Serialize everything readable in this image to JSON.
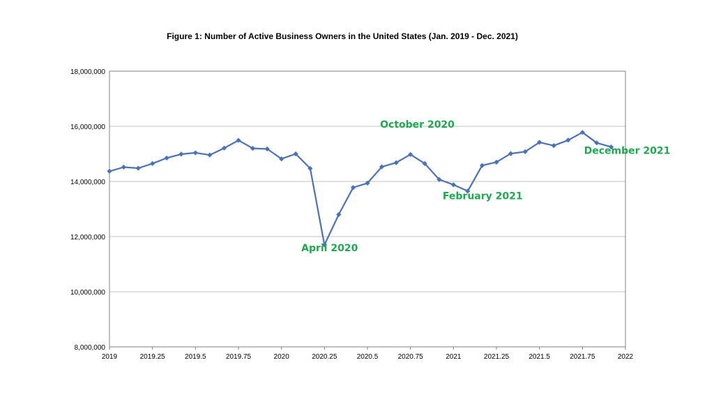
{
  "chart_data": {
    "type": "line",
    "title": "Figure 1: Number of Active Business Owners in the United States (Jan. 2019 - Dec. 2021)",
    "xlabel": "",
    "ylabel": "",
    "xlim": [
      2019,
      2022
    ],
    "ylim": [
      8000000,
      18000000
    ],
    "x_ticks": [
      {
        "value": 2019,
        "label": "2019"
      },
      {
        "value": 2019.25,
        "label": "2019.25"
      },
      {
        "value": 2019.5,
        "label": "2019.5"
      },
      {
        "value": 2019.75,
        "label": "2019.75"
      },
      {
        "value": 2020,
        "label": "2020"
      },
      {
        "value": 2020.25,
        "label": "2020.25"
      },
      {
        "value": 2020.5,
        "label": "2020.5"
      },
      {
        "value": 2020.75,
        "label": "2020.75"
      },
      {
        "value": 2021,
        "label": "2021"
      },
      {
        "value": 2021.25,
        "label": "2021.25"
      },
      {
        "value": 2021.5,
        "label": "2021.5"
      },
      {
        "value": 2021.75,
        "label": "2021.75"
      },
      {
        "value": 2022,
        "label": "2022"
      }
    ],
    "y_ticks": [
      {
        "value": 8000000,
        "label": "8,000,000"
      },
      {
        "value": 10000000,
        "label": "10,000,000"
      },
      {
        "value": 12000000,
        "label": "12,000,000"
      },
      {
        "value": 14000000,
        "label": "14,000,000"
      },
      {
        "value": 16000000,
        "label": "16,000,000"
      },
      {
        "value": 18000000,
        "label": "18,000,000"
      }
    ],
    "grid": "horizontal",
    "series": [
      {
        "color": "#4a72b8",
        "marker": "diamond",
        "x": [
          2019.0,
          2019.083,
          2019.167,
          2019.25,
          2019.333,
          2019.417,
          2019.5,
          2019.583,
          2019.667,
          2019.75,
          2019.833,
          2019.917,
          2020.0,
          2020.083,
          2020.167,
          2020.25,
          2020.333,
          2020.417,
          2020.5,
          2020.583,
          2020.667,
          2020.75,
          2020.833,
          2020.917,
          2021.0,
          2021.083,
          2021.167,
          2021.25,
          2021.333,
          2021.417,
          2021.5,
          2021.583,
          2021.667,
          2021.75,
          2021.833,
          2021.917
        ],
        "y": [
          14370000,
          14520000,
          14480000,
          14650000,
          14850000,
          14990000,
          15040000,
          14960000,
          15210000,
          15490000,
          15200000,
          15180000,
          14820000,
          15000000,
          14470000,
          11700000,
          12800000,
          13780000,
          13940000,
          14530000,
          14680000,
          14980000,
          14650000,
          14070000,
          13880000,
          13650000,
          14580000,
          14700000,
          15010000,
          15080000,
          15420000,
          15300000,
          15500000,
          15780000,
          15400000,
          15250000
        ]
      }
    ],
    "annotations": [
      {
        "text": "October 2020",
        "x": 2020.79,
        "y": 15950000,
        "color": "#1fa84f"
      },
      {
        "text": "December 2021",
        "x": 2022.01,
        "y": 15000000,
        "color": "#1fa84f"
      },
      {
        "text": "February 2021",
        "x": 2021.17,
        "y": 13350000,
        "color": "#1fa84f"
      },
      {
        "text": "April 2020",
        "x": 2020.28,
        "y": 11470000,
        "color": "#1fa84f"
      }
    ]
  }
}
